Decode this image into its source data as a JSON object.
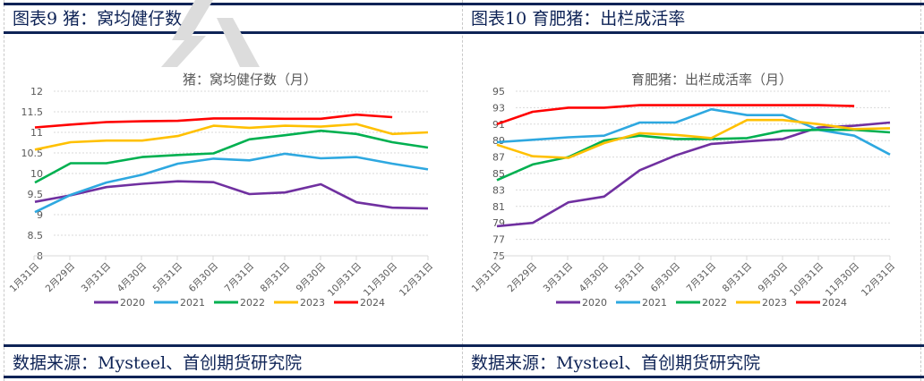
{
  "panels": [
    {
      "header_title": "图表9  猪：窝均健仔数",
      "source": "数据来源：Mysteel、首创期货研究院"
    },
    {
      "header_title": "图表10  育肥猪：出栏成活率",
      "source": "数据来源：Mysteel、首创期货研究院"
    }
  ],
  "chart_data": [
    {
      "type": "line",
      "title": "猪：窝均健仔数（月）",
      "xlabel": "",
      "ylabel": "",
      "categories": [
        "1月31日",
        "2月29日",
        "3月31日",
        "4月30日",
        "5月31日",
        "6月30日",
        "7月31日",
        "8月31日",
        "9月30日",
        "10月31日",
        "11月30日",
        "12月31日"
      ],
      "ylim": [
        8,
        12
      ],
      "yticks": [
        "8",
        "8.5",
        "9",
        "9.5",
        "10",
        "10.5",
        "11",
        "11.5",
        "12"
      ],
      "grid": true,
      "legend": "bottom",
      "series": [
        {
          "name": "2020",
          "color": "#7030a0",
          "values": [
            9.31,
            9.47,
            9.67,
            9.75,
            9.81,
            9.79,
            9.5,
            9.54,
            9.74,
            9.3,
            9.17,
            9.15
          ]
        },
        {
          "name": "2021",
          "color": "#2ea8e0",
          "values": [
            9.06,
            9.48,
            9.78,
            9.97,
            10.24,
            10.36,
            10.32,
            10.48,
            10.37,
            10.4,
            10.24,
            10.1
          ]
        },
        {
          "name": "2022",
          "color": "#00b050",
          "values": [
            9.78,
            10.25,
            10.25,
            10.4,
            10.45,
            10.49,
            10.83,
            10.93,
            11.04,
            10.96,
            10.76,
            10.63
          ]
        },
        {
          "name": "2023",
          "color": "#ffc000",
          "values": [
            10.58,
            10.76,
            10.8,
            10.8,
            10.91,
            11.16,
            11.11,
            11.16,
            11.14,
            11.2,
            10.96,
            11.0
          ]
        },
        {
          "name": "2024",
          "color": "#ff0000",
          "values": [
            11.12,
            11.19,
            11.25,
            11.27,
            11.28,
            11.34,
            11.34,
            11.33,
            11.33,
            11.43,
            11.37,
            null
          ]
        }
      ]
    },
    {
      "type": "line",
      "title": "育肥猪：出栏成活率（月）",
      "xlabel": "",
      "ylabel": "",
      "categories": [
        "1月31日",
        "2月29日",
        "3月31日",
        "4月30日",
        "5月31日",
        "6月30日",
        "7月31日",
        "8月31日",
        "9月30日",
        "10月31日",
        "11月30日",
        "12月31日"
      ],
      "ylim": [
        75,
        95
      ],
      "yticks": [
        "75",
        "77",
        "79",
        "81",
        "83",
        "85",
        "87",
        "89",
        "91",
        "93",
        "95"
      ],
      "grid": true,
      "legend": "bottom",
      "series": [
        {
          "name": "2020",
          "color": "#7030a0",
          "values": [
            78.6,
            79.0,
            81.5,
            82.2,
            85.4,
            87.2,
            88.6,
            88.9,
            89.2,
            90.6,
            90.8,
            91.2
          ]
        },
        {
          "name": "2021",
          "color": "#2ea8e0",
          "values": [
            88.8,
            89.1,
            89.4,
            89.6,
            91.2,
            91.2,
            92.8,
            92.1,
            92.1,
            90.3,
            89.6,
            87.3
          ]
        },
        {
          "name": "2022",
          "color": "#00b050",
          "values": [
            84.2,
            86.1,
            87.0,
            89.0,
            89.6,
            89.2,
            89.2,
            89.3,
            90.2,
            90.3,
            90.3,
            90.0
          ]
        },
        {
          "name": "2023",
          "color": "#ffc000",
          "values": [
            88.5,
            87.1,
            86.9,
            88.7,
            89.9,
            89.7,
            89.3,
            91.5,
            91.5,
            91.0,
            90.4,
            90.5
          ]
        },
        {
          "name": "2024",
          "color": "#ff0000",
          "values": [
            91.0,
            92.5,
            93.0,
            93.0,
            93.3,
            93.3,
            93.3,
            93.3,
            93.3,
            93.3,
            93.2,
            null
          ]
        }
      ]
    }
  ]
}
